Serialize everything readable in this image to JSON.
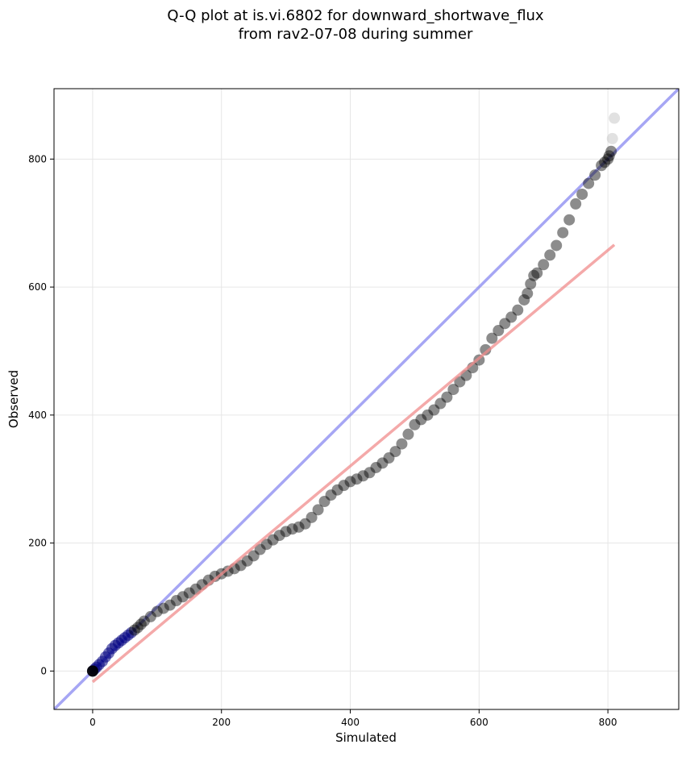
{
  "chart_data": {
    "type": "scatter",
    "title_lines": [
      "Q-Q plot at is.vi.6802 for downward_shortwave_flux",
      "from rav2-07-08 during summer"
    ],
    "xlabel": "Simulated",
    "ylabel": "Observed",
    "xlim": [
      -60,
      910
    ],
    "ylim": [
      -60,
      910
    ],
    "xticks": [
      0,
      200,
      400,
      600,
      800
    ],
    "yticks": [
      0,
      200,
      400,
      600,
      800
    ],
    "grid": true,
    "legend": "none",
    "colors": {
      "points": "#000000",
      "low_points": "#000080",
      "outlier_points": "#c8c8c8",
      "identity_line": "#8080f0",
      "fit_line": "#f08c8c",
      "grid": "#e6e6e6"
    },
    "identity_line": {
      "x": [
        -60,
        910
      ],
      "y": [
        -60,
        910
      ]
    },
    "fit_line": {
      "x": [
        0,
        810
      ],
      "y": [
        -17,
        666
      ]
    },
    "points": {
      "x": [
        0,
        3,
        6,
        10,
        15,
        20,
        25,
        30,
        35,
        40,
        45,
        50,
        55,
        60,
        65,
        70,
        75,
        80,
        90,
        100,
        110,
        120,
        130,
        140,
        150,
        160,
        170,
        180,
        190,
        200,
        210,
        220,
        230,
        240,
        250,
        260,
        270,
        280,
        290,
        300,
        310,
        320,
        330,
        340,
        350,
        360,
        370,
        380,
        390,
        400,
        410,
        420,
        430,
        440,
        450,
        460,
        470,
        480,
        490,
        500,
        510,
        520,
        530,
        540,
        550,
        560,
        570,
        580,
        590,
        600,
        610,
        620,
        630,
        640,
        650,
        660,
        670,
        675,
        680,
        685,
        690,
        700,
        710,
        720,
        730,
        740,
        750,
        760,
        770,
        780,
        790,
        795,
        800,
        802,
        805,
        807,
        810
      ],
      "y": [
        0,
        3,
        6,
        10,
        15,
        22,
        28,
        35,
        40,
        44,
        48,
        52,
        56,
        60,
        64,
        68,
        73,
        78,
        85,
        93,
        98,
        103,
        110,
        116,
        122,
        128,
        135,
        142,
        148,
        152,
        156,
        160,
        165,
        172,
        180,
        190,
        198,
        205,
        212,
        218,
        222,
        225,
        230,
        240,
        252,
        265,
        275,
        283,
        290,
        296,
        300,
        305,
        310,
        318,
        325,
        333,
        343,
        355,
        370,
        385,
        393,
        400,
        408,
        418,
        428,
        440,
        452,
        462,
        474,
        486,
        502,
        520,
        532,
        543,
        553,
        564,
        580,
        590,
        605,
        618,
        622,
        635,
        650,
        665,
        685,
        705,
        730,
        745,
        762,
        775,
        790,
        795,
        800,
        805,
        812,
        832,
        864
      ]
    },
    "low_points_count": 14,
    "outlier_points_count": 2
  }
}
